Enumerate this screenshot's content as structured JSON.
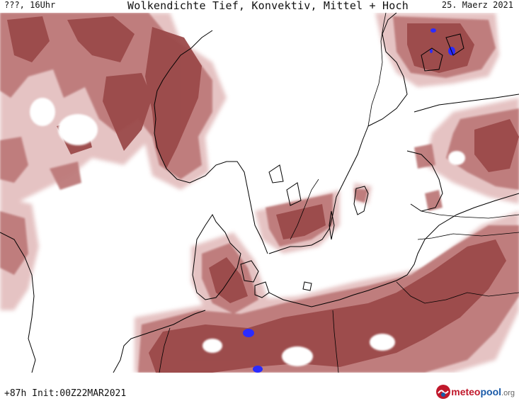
{
  "header": {
    "run_label": "???, 16Uhr",
    "title": "Wolkendichte  Tief, Konvektiv, Mittel + Hoch",
    "valid_date": "25. Maerz 2021"
  },
  "footer": {
    "init_label": "+87h Init:00Z22MAR2021",
    "logo": {
      "meteo": "meteo",
      "pool": "pool",
      "org": ".org"
    }
  },
  "legend_colors": {
    "cloud_dark": "#9b4a4a",
    "cloud_mid": "#bd7a7a",
    "cloud_light": "#e4c0c0",
    "convective": "#2b2bff",
    "coastline": "#000000",
    "border": "#000000"
  }
}
